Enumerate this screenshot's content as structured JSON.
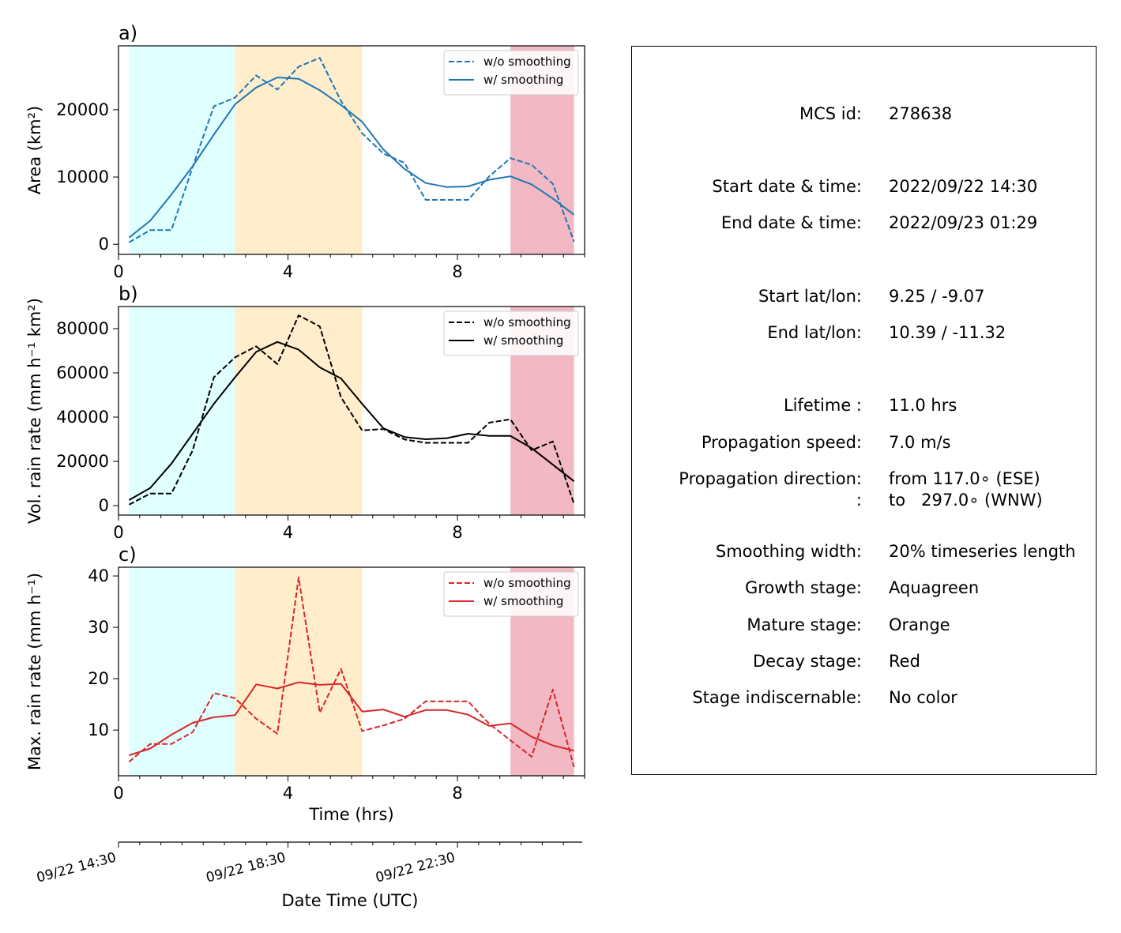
{
  "chart_data": [
    {
      "panel_label": "a)",
      "type": "line",
      "ylabel": "Area  (km²)",
      "xlabel": "",
      "xlim": [
        0,
        11
      ],
      "ylim": [
        -1500,
        29500
      ],
      "xticks": [
        0,
        4,
        8
      ],
      "yticks": [
        0,
        10000,
        20000
      ],
      "color": "#1f77b4",
      "stages": [
        {
          "name": "Growth stage",
          "from": 0.25,
          "to": 2.75,
          "color": "#e0ffff"
        },
        {
          "name": "Mature stage",
          "from": 2.75,
          "to": 5.75,
          "color": "#ffedcc"
        },
        {
          "name": "Decay stage",
          "from": 9.25,
          "to": 10.75,
          "color": "#f2b8c4"
        }
      ],
      "legend": {
        "position": "top-right"
      },
      "series": [
        {
          "name": "w/o smoothing",
          "style": "dashed",
          "x": [
            0.25,
            0.75,
            1.25,
            1.75,
            2.25,
            2.75,
            3.25,
            3.75,
            4.25,
            4.75,
            5.25,
            5.75,
            6.25,
            6.75,
            7.25,
            7.75,
            8.25,
            8.75,
            9.25,
            9.75,
            10.25,
            10.75
          ],
          "y": [
            300,
            2100,
            2100,
            11500,
            20500,
            21800,
            25100,
            23000,
            26400,
            27700,
            21300,
            16500,
            13500,
            12100,
            6600,
            6600,
            6600,
            10100,
            12800,
            11800,
            9000,
            400
          ]
        },
        {
          "name": "w/ smoothing",
          "style": "solid",
          "x": [
            0.25,
            0.75,
            1.25,
            1.75,
            2.25,
            2.75,
            3.25,
            3.75,
            4.25,
            4.75,
            5.25,
            5.75,
            6.25,
            6.75,
            7.25,
            7.75,
            8.25,
            8.75,
            9.25,
            9.75,
            10.25,
            10.75
          ],
          "y": [
            1000,
            3500,
            7400,
            11600,
            16300,
            20800,
            23300,
            24800,
            24600,
            22900,
            20700,
            18200,
            14100,
            11200,
            9100,
            8500,
            8600,
            9600,
            10100,
            8900,
            6800,
            4400
          ]
        }
      ]
    },
    {
      "panel_label": "b)",
      "type": "line",
      "ylabel": "Vol. rain rate (mm h⁻¹ km²)",
      "xlabel": "",
      "xlim": [
        0,
        11
      ],
      "ylim": [
        -4300,
        90000
      ],
      "xticks": [
        0,
        4,
        8
      ],
      "yticks": [
        0,
        20000,
        40000,
        60000,
        80000
      ],
      "color": "#000000",
      "stages": [
        {
          "name": "Growth stage",
          "from": 0.25,
          "to": 2.75,
          "color": "#e0ffff"
        },
        {
          "name": "Mature stage",
          "from": 2.75,
          "to": 5.75,
          "color": "#ffedcc"
        },
        {
          "name": "Decay stage",
          "from": 9.25,
          "to": 10.75,
          "color": "#f2b8c4"
        }
      ],
      "legend": {
        "position": "top-right"
      },
      "series": [
        {
          "name": "w/o smoothing",
          "style": "dashed",
          "x": [
            0.25,
            0.75,
            1.25,
            1.75,
            2.25,
            2.75,
            3.25,
            3.75,
            4.25,
            4.75,
            5.25,
            5.75,
            6.25,
            6.75,
            7.25,
            7.75,
            8.25,
            8.75,
            9.25,
            9.75,
            10.25,
            10.75
          ],
          "y": [
            400,
            5400,
            5400,
            25000,
            58000,
            67000,
            72000,
            64000,
            86000,
            81000,
            49000,
            34000,
            34600,
            29900,
            28400,
            28400,
            28400,
            37500,
            39000,
            25000,
            29000,
            800
          ]
        },
        {
          "name": "w/ smoothing",
          "style": "solid",
          "x": [
            0.25,
            0.75,
            1.25,
            1.75,
            2.25,
            2.75,
            3.25,
            3.75,
            4.25,
            4.75,
            5.25,
            5.75,
            6.25,
            6.75,
            7.25,
            7.75,
            8.25,
            8.75,
            9.25,
            9.75,
            10.25,
            10.75
          ],
          "y": [
            2500,
            8000,
            19000,
            32500,
            46000,
            58000,
            69500,
            74000,
            70500,
            62500,
            57500,
            46000,
            35000,
            31000,
            30000,
            30500,
            32500,
            31500,
            31500,
            26000,
            18500,
            11000
          ]
        }
      ]
    },
    {
      "panel_label": "c)",
      "type": "line",
      "ylabel": "Max. rain rate  (mm h⁻¹)",
      "xlabel": "Time (hrs)",
      "xlim": [
        0,
        11
      ],
      "ylim": [
        1.1,
        41.7
      ],
      "xticks": [
        0,
        4,
        8
      ],
      "yticks": [
        10,
        20,
        30,
        40
      ],
      "color": "#d62728",
      "stages": [
        {
          "name": "Growth stage",
          "from": 0.25,
          "to": 2.75,
          "color": "#e0ffff"
        },
        {
          "name": "Mature stage",
          "from": 2.75,
          "to": 5.75,
          "color": "#ffedcc"
        },
        {
          "name": "Decay stage",
          "from": 9.25,
          "to": 10.75,
          "color": "#f2b8c4"
        }
      ],
      "legend": {
        "position": "top-right"
      },
      "series": [
        {
          "name": "w/o smoothing",
          "style": "dashed",
          "x": [
            0.25,
            0.75,
            1.25,
            1.75,
            2.25,
            2.75,
            3.25,
            3.75,
            4.25,
            4.75,
            5.25,
            5.75,
            6.25,
            6.75,
            7.25,
            7.75,
            8.25,
            8.75,
            9.25,
            9.75,
            10.25,
            10.75
          ],
          "y": [
            3.8,
            7.3,
            7.3,
            9.6,
            17.2,
            16.2,
            12.2,
            9.3,
            39.7,
            13.4,
            21.9,
            9.8,
            10.9,
            12.2,
            15.6,
            15.6,
            15.6,
            11.2,
            8.0,
            4.8,
            17.9,
            2.8
          ]
        },
        {
          "name": "w/ smoothing",
          "style": "solid",
          "x": [
            0.25,
            0.75,
            1.25,
            1.75,
            2.25,
            2.75,
            3.25,
            3.75,
            4.25,
            4.75,
            5.25,
            5.75,
            6.25,
            6.75,
            7.25,
            7.75,
            8.25,
            8.75,
            9.25,
            9.75,
            10.25,
            10.75
          ],
          "y": [
            5.1,
            6.4,
            9.1,
            11.4,
            12.5,
            12.9,
            18.9,
            18.1,
            19.3,
            18.8,
            19.0,
            13.6,
            14.0,
            12.6,
            13.9,
            13.9,
            13.0,
            10.8,
            11.3,
            8.7,
            7.0,
            6.0
          ]
        }
      ]
    }
  ],
  "date_axis": {
    "label": "Date Time (UTC)",
    "ticks": [
      {
        "hrs": 0,
        "label": "09/22 14:30"
      },
      {
        "hrs": 4,
        "label": "09/22 18:30"
      },
      {
        "hrs": 8,
        "label": "09/22 22:30"
      }
    ]
  },
  "info": {
    "rows": [
      {
        "label": "MCS id:",
        "value": "278638"
      },
      {
        "label": "Start date & time:",
        "value": "2022/09/22 14:30"
      },
      {
        "label": "End date & time:",
        "value": "2022/09/23 01:29"
      },
      {
        "label": "Start lat/lon:",
        "value": "9.25 / -9.07"
      },
      {
        "label": "End lat/lon:",
        "value": "10.39 / -11.32"
      },
      {
        "label": "Lifetime :",
        "value": "11.0 hrs"
      },
      {
        "label": "Propagation speed:",
        "value": "7.0 m/s"
      },
      {
        "label": "Propagation direction:",
        "value": "from 117.0∘ (ESE)"
      },
      {
        "label": ":",
        "value": "to   297.0∘ (WNW)"
      },
      {
        "label": "Smoothing width:",
        "value": "20% timeseries length"
      },
      {
        "label": "Growth stage:",
        "value": "Aquagreen"
      },
      {
        "label": "Mature stage:",
        "value": "Orange"
      },
      {
        "label": "Decay stage:",
        "value": "Red"
      },
      {
        "label": "Stage indiscernable:",
        "value": "No color"
      }
    ]
  }
}
